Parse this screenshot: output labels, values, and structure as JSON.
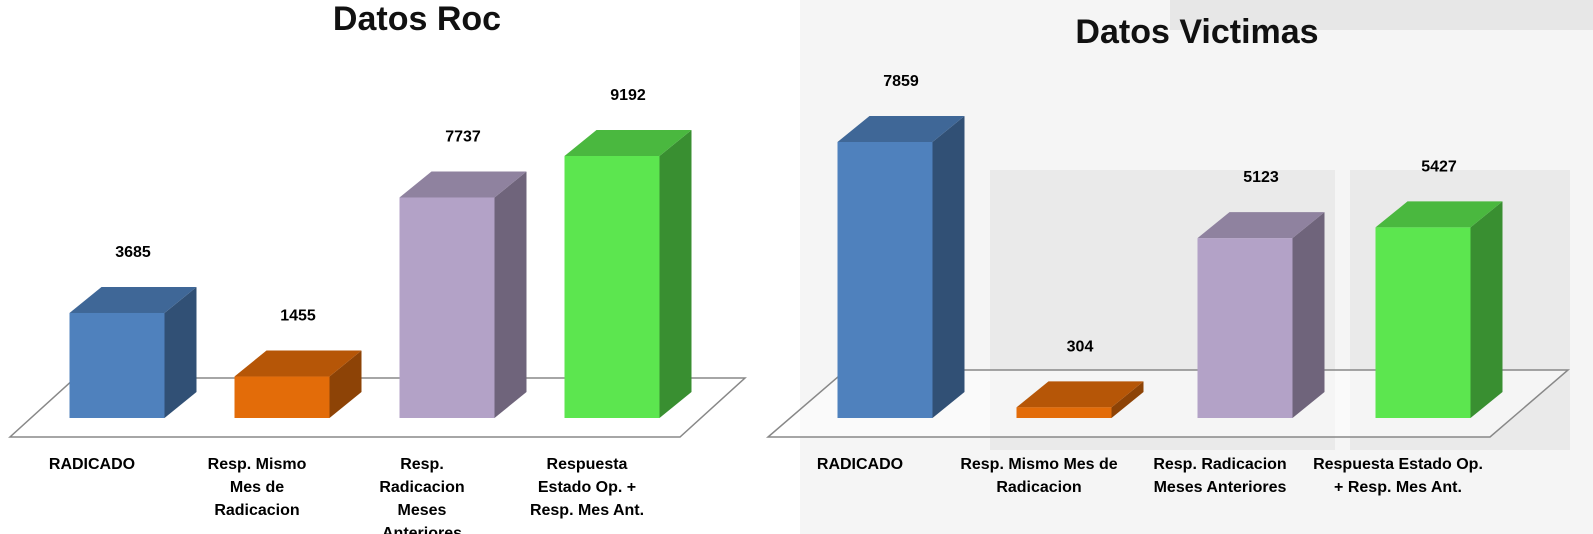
{
  "chart_data": [
    {
      "type": "bar",
      "title": "Datos Roc",
      "categories": [
        "RADICADO",
        "Resp. Mismo Mes de Radicacion",
        "Resp. Radicacion Meses Anteriores",
        "Respuesta Estado Op. + Resp. Mes Ant."
      ],
      "values": [
        3685,
        1455,
        7737,
        9192
      ],
      "colors": [
        "#4f81bd",
        "#e36c09",
        "#b3a2c7",
        "#5ce64f"
      ]
    },
    {
      "type": "bar",
      "title": "Datos Victimas",
      "categories": [
        "RADICADO",
        "Resp. Mismo Mes de Radicacion",
        "Resp. Radicacion Meses Anteriores",
        "Respuesta Estado Op. + Resp. Mes Ant."
      ],
      "values": [
        7859,
        304,
        5123,
        5427
      ],
      "colors": [
        "#4f81bd",
        "#e36c09",
        "#b3a2c7",
        "#5ce64f"
      ]
    }
  ]
}
